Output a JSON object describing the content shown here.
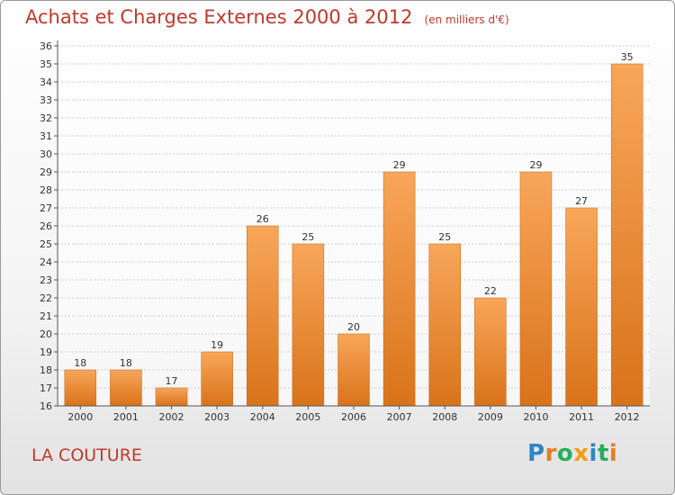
{
  "title": "Achats et Charges Externes 2000 à 2012",
  "unit": "(en milliers d'€)",
  "commune": "LA COUTURE",
  "brand": {
    "text": "Proxiti",
    "letters": [
      {
        "char": "P",
        "color": "#2e86c1"
      },
      {
        "char": "r",
        "color": "#e67e22"
      },
      {
        "char": "o",
        "color": "#27ae60"
      },
      {
        "char": "x",
        "color": "#f39c12"
      },
      {
        "char": "i",
        "color": "#2e86c1"
      },
      {
        "char": "t",
        "color": "#27ae60"
      },
      {
        "char": "i",
        "color": "#e67e22"
      }
    ]
  },
  "colors": {
    "title": "#c0392b",
    "bar_light": "#f8a65a",
    "bar_dark": "#d9731a",
    "grid": "#cccccc",
    "axis": "#555555"
  },
  "chart_data": {
    "type": "bar",
    "categories": [
      "2000",
      "2001",
      "2002",
      "2003",
      "2004",
      "2005",
      "2006",
      "2007",
      "2008",
      "2009",
      "2010",
      "2011",
      "2012"
    ],
    "values": [
      18,
      18,
      17,
      19,
      26,
      25,
      20,
      29,
      25,
      22,
      29,
      27,
      35
    ],
    "ylim": [
      16,
      36
    ],
    "ytick_step": 1,
    "grid": true,
    "title": "Achats et Charges Externes 2000 à 2012",
    "xlabel": "",
    "ylabel": ""
  }
}
